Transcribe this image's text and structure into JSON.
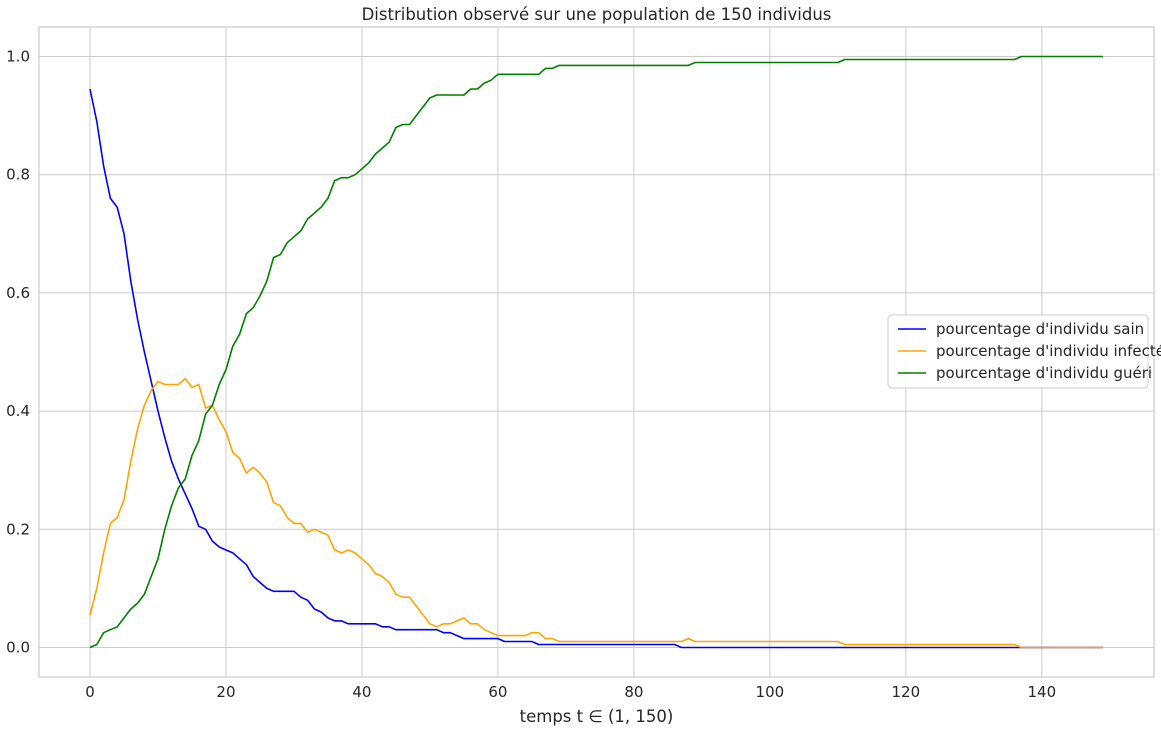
{
  "chart_data": {
    "type": "line",
    "title": "Distribution observé sur une population de 150 individus",
    "xlabel": "temps t ∈ (1, 150)",
    "ylabel": "",
    "xlim": [
      -7.5,
      156.5
    ],
    "ylim": [
      -0.05,
      1.05
    ],
    "xticks": [
      0,
      20,
      40,
      60,
      80,
      100,
      120,
      140
    ],
    "yticks": [
      0.0,
      0.2,
      0.4,
      0.6,
      0.8,
      1.0
    ],
    "xtick_labels": [
      "0",
      "20",
      "40",
      "60",
      "80",
      "100",
      "120",
      "140"
    ],
    "ytick_labels": [
      "0.0",
      "0.2",
      "0.4",
      "0.6",
      "0.8",
      "1.0"
    ],
    "grid": true,
    "legend_position": "center-right",
    "series": [
      {
        "name": "pourcentage d'individu sain",
        "color": "#0000ff",
        "points": [
          [
            0,
            0.945
          ],
          [
            1,
            0.89
          ],
          [
            2,
            0.815
          ],
          [
            3,
            0.76
          ],
          [
            4,
            0.745
          ],
          [
            5,
            0.7
          ],
          [
            6,
            0.62
          ],
          [
            7,
            0.555
          ],
          [
            8,
            0.5
          ],
          [
            9,
            0.45
          ],
          [
            10,
            0.4
          ],
          [
            11,
            0.355
          ],
          [
            12,
            0.315
          ],
          [
            13,
            0.285
          ],
          [
            14,
            0.26
          ],
          [
            15,
            0.235
          ],
          [
            16,
            0.205
          ],
          [
            17,
            0.2
          ],
          [
            18,
            0.18
          ],
          [
            19,
            0.17
          ],
          [
            20,
            0.165
          ],
          [
            21,
            0.16
          ],
          [
            22,
            0.15
          ],
          [
            23,
            0.14
          ],
          [
            24,
            0.12
          ],
          [
            25,
            0.11
          ],
          [
            26,
            0.1
          ],
          [
            27,
            0.095
          ],
          [
            30,
            0.095
          ],
          [
            31,
            0.085
          ],
          [
            32,
            0.08
          ],
          [
            33,
            0.065
          ],
          [
            34,
            0.06
          ],
          [
            35,
            0.05
          ],
          [
            36,
            0.045
          ],
          [
            37,
            0.045
          ],
          [
            38,
            0.04
          ],
          [
            42,
            0.04
          ],
          [
            43,
            0.035
          ],
          [
            44,
            0.035
          ],
          [
            45,
            0.03
          ],
          [
            51,
            0.03
          ],
          [
            52,
            0.025
          ],
          [
            53,
            0.025
          ],
          [
            55,
            0.015
          ],
          [
            60,
            0.015
          ],
          [
            61,
            0.01
          ],
          [
            65,
            0.01
          ],
          [
            66,
            0.005
          ],
          [
            86,
            0.005
          ],
          [
            87,
            0.0
          ],
          [
            149,
            0.0
          ]
        ]
      },
      {
        "name": "pourcentage d'individu infecté",
        "color": "#ffa500",
        "points": [
          [
            0,
            0.055
          ],
          [
            1,
            0.1
          ],
          [
            2,
            0.16
          ],
          [
            3,
            0.21
          ],
          [
            4,
            0.22
          ],
          [
            5,
            0.25
          ],
          [
            6,
            0.315
          ],
          [
            7,
            0.37
          ],
          [
            8,
            0.41
          ],
          [
            9,
            0.435
          ],
          [
            10,
            0.45
          ],
          [
            11,
            0.445
          ],
          [
            13,
            0.445
          ],
          [
            14,
            0.455
          ],
          [
            15,
            0.44
          ],
          [
            16,
            0.445
          ],
          [
            17,
            0.405
          ],
          [
            18,
            0.41
          ],
          [
            19,
            0.385
          ],
          [
            20,
            0.365
          ],
          [
            21,
            0.33
          ],
          [
            22,
            0.32
          ],
          [
            23,
            0.295
          ],
          [
            24,
            0.305
          ],
          [
            25,
            0.295
          ],
          [
            26,
            0.28
          ],
          [
            27,
            0.245
          ],
          [
            28,
            0.24
          ],
          [
            29,
            0.22
          ],
          [
            30,
            0.21
          ],
          [
            31,
            0.21
          ],
          [
            32,
            0.195
          ],
          [
            33,
            0.2
          ],
          [
            34,
            0.195
          ],
          [
            35,
            0.19
          ],
          [
            36,
            0.165
          ],
          [
            37,
            0.16
          ],
          [
            38,
            0.165
          ],
          [
            39,
            0.16
          ],
          [
            40,
            0.15
          ],
          [
            41,
            0.14
          ],
          [
            42,
            0.125
          ],
          [
            43,
            0.12
          ],
          [
            44,
            0.11
          ],
          [
            45,
            0.09
          ],
          [
            46,
            0.085
          ],
          [
            47,
            0.085
          ],
          [
            48,
            0.07
          ],
          [
            49,
            0.055
          ],
          [
            50,
            0.04
          ],
          [
            51,
            0.035
          ],
          [
            52,
            0.04
          ],
          [
            53,
            0.04
          ],
          [
            54,
            0.045
          ],
          [
            55,
            0.05
          ],
          [
            56,
            0.04
          ],
          [
            57,
            0.04
          ],
          [
            58,
            0.03
          ],
          [
            59,
            0.025
          ],
          [
            60,
            0.02
          ],
          [
            64,
            0.02
          ],
          [
            65,
            0.025
          ],
          [
            66,
            0.025
          ],
          [
            67,
            0.015
          ],
          [
            68,
            0.015
          ],
          [
            69,
            0.01
          ],
          [
            87,
            0.01
          ],
          [
            88,
            0.015
          ],
          [
            89,
            0.01
          ],
          [
            110,
            0.01
          ],
          [
            111,
            0.005
          ],
          [
            136,
            0.005
          ],
          [
            137,
            0.0
          ],
          [
            149,
            0.0
          ]
        ]
      },
      {
        "name": "pourcentage d'individu guéri",
        "color": "#008000",
        "points": [
          [
            0,
            0.0
          ],
          [
            1,
            0.005
          ],
          [
            2,
            0.025
          ],
          [
            3,
            0.03
          ],
          [
            4,
            0.035
          ],
          [
            5,
            0.05
          ],
          [
            6,
            0.065
          ],
          [
            7,
            0.075
          ],
          [
            8,
            0.09
          ],
          [
            9,
            0.12
          ],
          [
            10,
            0.15
          ],
          [
            11,
            0.2
          ],
          [
            12,
            0.24
          ],
          [
            13,
            0.27
          ],
          [
            14,
            0.285
          ],
          [
            15,
            0.325
          ],
          [
            16,
            0.35
          ],
          [
            17,
            0.395
          ],
          [
            18,
            0.41
          ],
          [
            19,
            0.445
          ],
          [
            20,
            0.47
          ],
          [
            21,
            0.51
          ],
          [
            22,
            0.53
          ],
          [
            23,
            0.565
          ],
          [
            24,
            0.575
          ],
          [
            25,
            0.595
          ],
          [
            26,
            0.62
          ],
          [
            27,
            0.66
          ],
          [
            28,
            0.665
          ],
          [
            29,
            0.685
          ],
          [
            30,
            0.695
          ],
          [
            31,
            0.705
          ],
          [
            32,
            0.725
          ],
          [
            33,
            0.735
          ],
          [
            34,
            0.745
          ],
          [
            35,
            0.76
          ],
          [
            36,
            0.79
          ],
          [
            37,
            0.795
          ],
          [
            38,
            0.795
          ],
          [
            39,
            0.8
          ],
          [
            40,
            0.81
          ],
          [
            41,
            0.82
          ],
          [
            42,
            0.835
          ],
          [
            43,
            0.845
          ],
          [
            44,
            0.855
          ],
          [
            45,
            0.88
          ],
          [
            46,
            0.885
          ],
          [
            47,
            0.885
          ],
          [
            48,
            0.9
          ],
          [
            49,
            0.915
          ],
          [
            50,
            0.93
          ],
          [
            51,
            0.935
          ],
          [
            55,
            0.935
          ],
          [
            56,
            0.945
          ],
          [
            57,
            0.945
          ],
          [
            58,
            0.955
          ],
          [
            59,
            0.96
          ],
          [
            60,
            0.97
          ],
          [
            66,
            0.97
          ],
          [
            67,
            0.98
          ],
          [
            68,
            0.98
          ],
          [
            69,
            0.985
          ],
          [
            88,
            0.985
          ],
          [
            89,
            0.99
          ],
          [
            110,
            0.99
          ],
          [
            111,
            0.995
          ],
          [
            136,
            0.995
          ],
          [
            137,
            1.0
          ],
          [
            149,
            1.0
          ]
        ]
      }
    ]
  }
}
